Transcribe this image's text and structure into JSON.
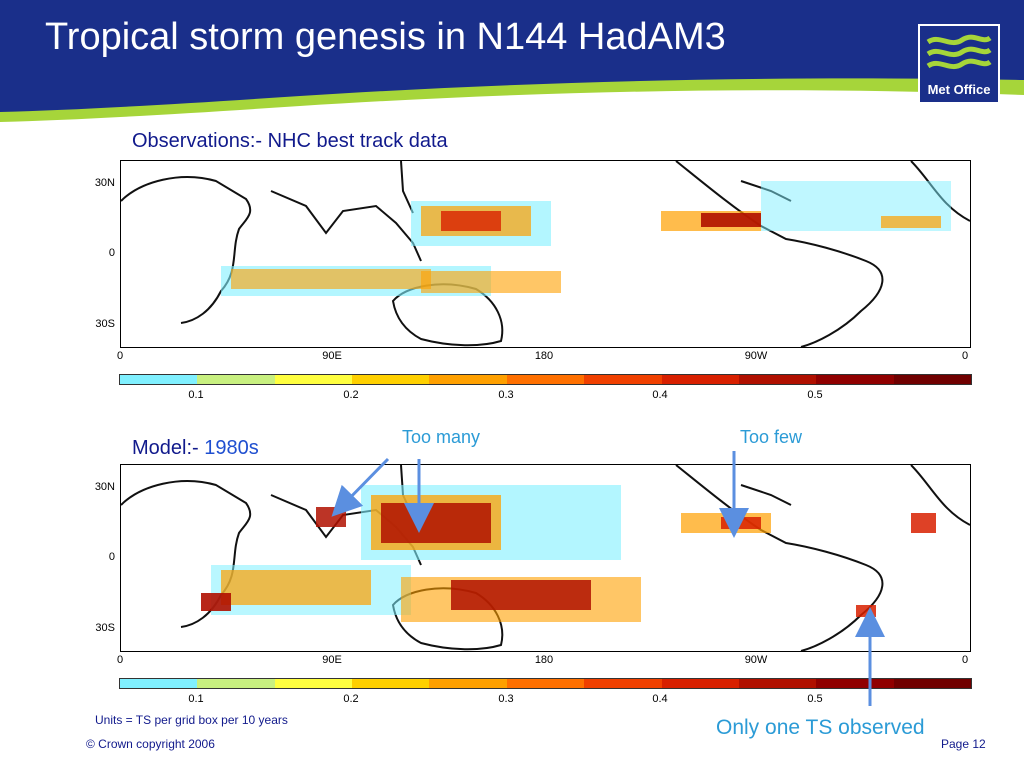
{
  "slide": {
    "title": "Tropical storm genesis in N144 HadAM3",
    "logo_text": "Met Office",
    "footer_copyright": "© Crown copyright 2006",
    "page": "Page 12",
    "units_note": "Units = TS per grid box per 10 years"
  },
  "panels": {
    "observations": {
      "heading": "Observations:- NHC best track data",
      "lat_labels": [
        "30N",
        "0",
        "30S"
      ],
      "lon_labels": [
        "0",
        "90E",
        "180",
        "90W",
        "0"
      ]
    },
    "model": {
      "heading_prefix": "Model:- ",
      "heading_period": "1980s",
      "lat_labels": [
        "30N",
        "0",
        "30S"
      ],
      "lon_labels": [
        "0",
        "90E",
        "180",
        "90W",
        "0"
      ]
    }
  },
  "colorbar": {
    "ticks": [
      "0.1",
      "0.2",
      "0.3",
      "0.4",
      "0.5"
    ],
    "colors": [
      "#80f0ff",
      "#c8f080",
      "#ffff40",
      "#ffd000",
      "#ffa000",
      "#ff7000",
      "#f04000",
      "#d82000",
      "#b01000",
      "#900000",
      "#700000"
    ]
  },
  "annotations": {
    "too_many": "Too many",
    "too_few": "Too few",
    "only_one": "Only one TS observed"
  },
  "colors": {
    "banner_blue": "#1a2f8a",
    "banner_green": "#a6d53a",
    "heading_navy": "#111a8c",
    "annotation_blue": "#2b9bd6"
  }
}
